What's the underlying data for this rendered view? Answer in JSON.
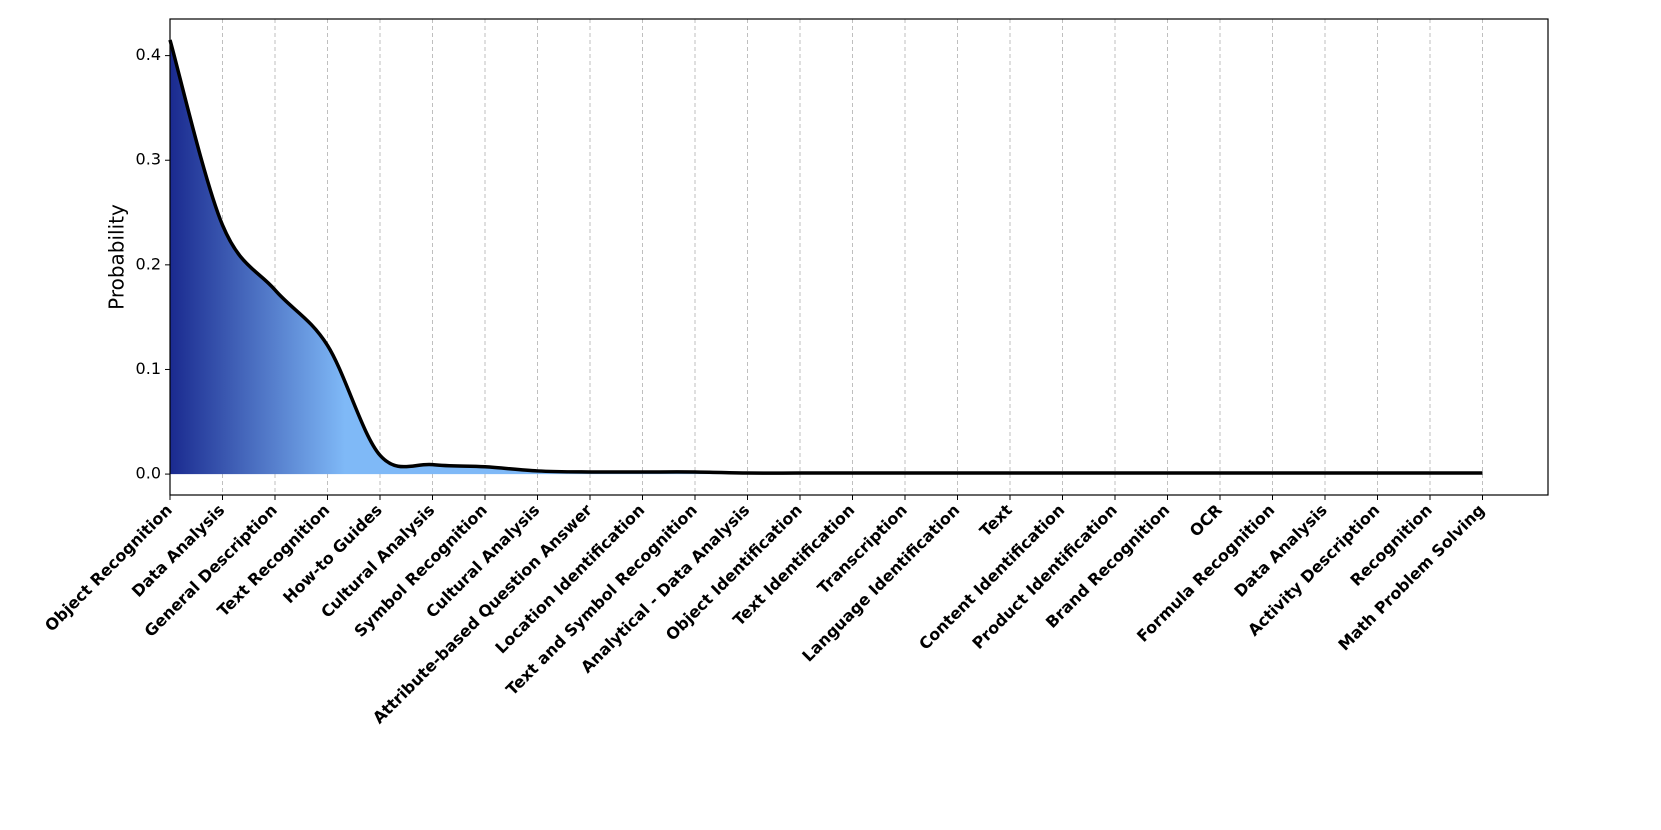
{
  "chart_data": {
    "type": "line",
    "y_label": "Probability",
    "categories": [
      "Object Recognition",
      "Data Analysis",
      "General Description",
      "Text Recognition",
      "How-to Guides",
      "Cultural Analysis",
      "Symbol Recognition",
      "Cultural Analysis",
      "Attribute-based Question Answer",
      "Location Identification",
      "Text and Symbol Recognition",
      "Analytical - Data Analysis",
      "Object Identification",
      "Text Identification",
      "Transcription",
      "Language Identification",
      "Text",
      "Content Identification",
      "Product Identification",
      "Brand Recognition",
      "OCR",
      "Formula Recognition",
      "Data Analysis",
      "Activity Description",
      "Recognition",
      "Math Problem Solving"
    ],
    "values": [
      0.415,
      0.238,
      0.176,
      0.123,
      0.018,
      0.009,
      0.007,
      0.003,
      0.002,
      0.002,
      0.002,
      0.001,
      0.001,
      0.001,
      0.001,
      0.001,
      0.001,
      0.001,
      0.001,
      0.001,
      0.001,
      0.001,
      0.001,
      0.001,
      0.001,
      0.001
    ],
    "color": "#000000",
    "fill_colors": [
      "#1a2a8f",
      "#7fb9f7"
    ],
    "ylim": [
      -0.02,
      0.435
    ],
    "yticks": [
      {
        "value": 0,
        "label": "0.0"
      },
      0.1,
      0.2,
      0.3,
      0.4
    ],
    "grid": true
  }
}
